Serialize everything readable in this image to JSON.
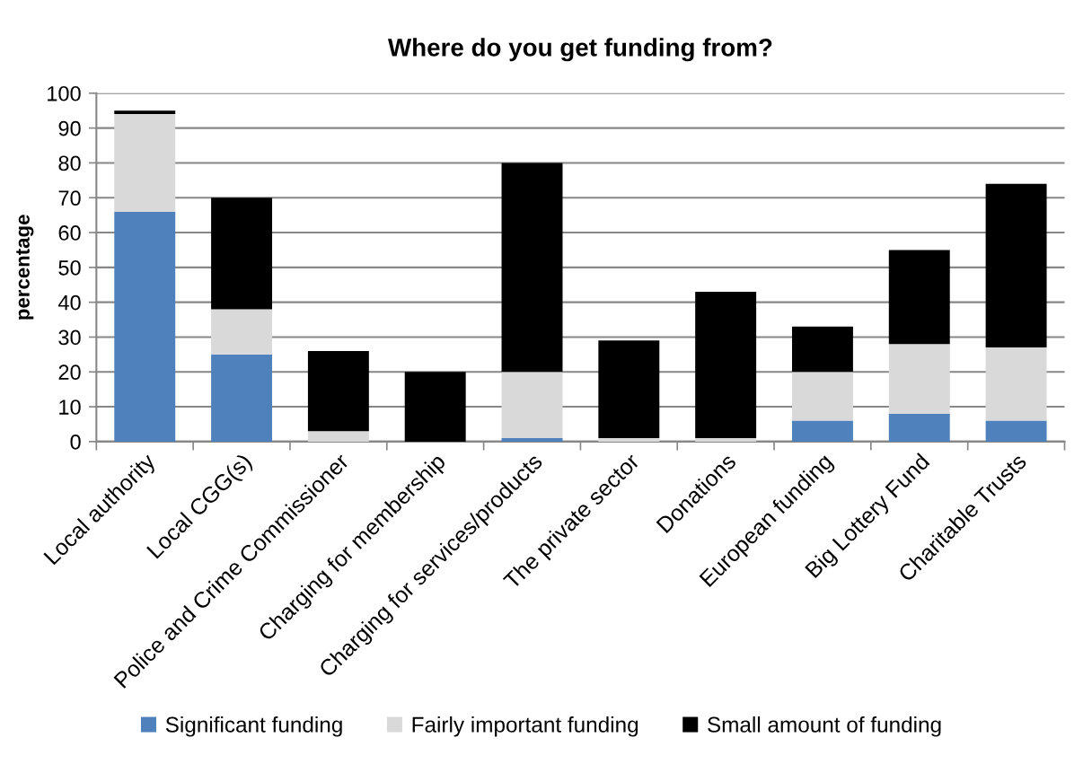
{
  "chart_data": {
    "type": "bar",
    "title": "Where do you get funding from?",
    "ylabel": "percentage",
    "categories": [
      "Local authority",
      "Local CGG(s)",
      "Police and Crime Commissioner",
      "Charging for membership",
      "Charging for services/products",
      "The private sector",
      "Donations",
      "European funding",
      "Big Lottery Fund",
      "Charitable Trusts"
    ],
    "series": [
      {
        "name": "Significant funding",
        "color": "#4f81bd",
        "values": [
          66,
          25,
          0,
          0,
          1,
          0,
          0,
          6,
          8,
          6
        ]
      },
      {
        "name": "Fairly important funding",
        "color": "#d9d9d9",
        "values": [
          28,
          13,
          3,
          0,
          19,
          1,
          1,
          14,
          20,
          21
        ]
      },
      {
        "name": "Small amount of funding",
        "color": "#000000",
        "values": [
          1,
          32,
          23,
          20,
          60,
          28,
          42,
          13,
          27,
          47
        ]
      }
    ],
    "stacked": true,
    "ylim": [
      0,
      100
    ],
    "yticks": [
      0,
      10,
      20,
      30,
      40,
      50,
      60,
      70,
      80,
      90,
      100
    ],
    "grid": "y",
    "legend": "bottom"
  }
}
